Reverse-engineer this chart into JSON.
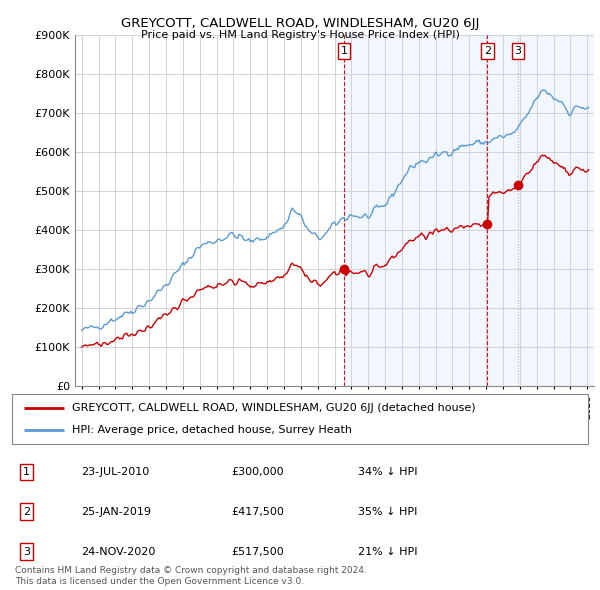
{
  "title": "GREYCOTT, CALDWELL ROAD, WINDLESHAM, GU20 6JJ",
  "subtitle": "Price paid vs. HM Land Registry's House Price Index (HPI)",
  "legend_line1": "GREYCOTT, CALDWELL ROAD, WINDLESHAM, GU20 6JJ (detached house)",
  "legend_line2": "HPI: Average price, detached house, Surrey Heath",
  "footer1": "Contains HM Land Registry data © Crown copyright and database right 2024.",
  "footer2": "This data is licensed under the Open Government Licence v3.0.",
  "transactions": [
    {
      "num": 1,
      "date": "23-JUL-2010",
      "price": "£300,000",
      "pct": "34%",
      "dir": "↓",
      "label": "HPI",
      "t": 2010.554,
      "v": 300000
    },
    {
      "num": 2,
      "date": "25-JAN-2019",
      "price": "£417,500",
      "pct": "35%",
      "dir": "↓",
      "label": "HPI",
      "t": 2019.07,
      "v": 417500
    },
    {
      "num": 3,
      "date": "24-NOV-2020",
      "price": "£517,500",
      "pct": "21%",
      "dir": "↓",
      "label": "HPI",
      "t": 2020.896,
      "v": 517500
    }
  ],
  "hpi_color": "#5b9bd5",
  "hpi_fill_color": "#ddeeff",
  "price_color": "#cc0000",
  "vline_colors": [
    "#cc0000",
    "#cc0000",
    "#aaaaaa"
  ],
  "background_color": "#ffffff",
  "grid_color": "#cccccc",
  "ylim": [
    0,
    900000
  ],
  "yticks": [
    0,
    100000,
    200000,
    300000,
    400000,
    500000,
    600000,
    700000,
    800000,
    900000
  ],
  "xlim_left": 1994.6,
  "xlim_right": 2025.4
}
